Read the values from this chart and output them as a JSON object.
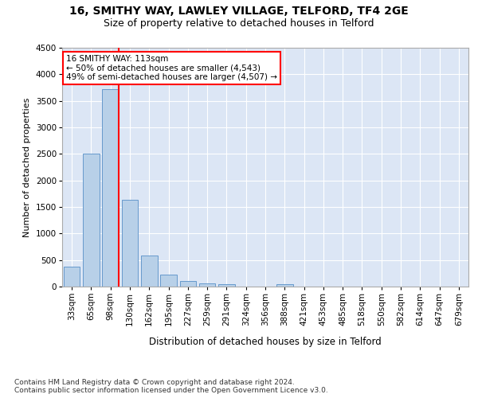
{
  "title1": "16, SMITHY WAY, LAWLEY VILLAGE, TELFORD, TF4 2GE",
  "title2": "Size of property relative to detached houses in Telford",
  "xlabel": "Distribution of detached houses by size in Telford",
  "ylabel": "Number of detached properties",
  "categories": [
    "33sqm",
    "65sqm",
    "98sqm",
    "130sqm",
    "162sqm",
    "195sqm",
    "227sqm",
    "259sqm",
    "291sqm",
    "324sqm",
    "356sqm",
    "388sqm",
    "421sqm",
    "453sqm",
    "485sqm",
    "518sqm",
    "550sqm",
    "582sqm",
    "614sqm",
    "647sqm",
    "679sqm"
  ],
  "values": [
    370,
    2500,
    3720,
    1630,
    590,
    225,
    105,
    65,
    40,
    0,
    0,
    50,
    0,
    0,
    0,
    0,
    0,
    0,
    0,
    0,
    0
  ],
  "bar_color": "#b8d0e8",
  "bar_edge_color": "#6699cc",
  "vline_x_idx": 2,
  "vline_color": "red",
  "annotation_text": "16 SMITHY WAY: 113sqm\n← 50% of detached houses are smaller (4,543)\n49% of semi-detached houses are larger (4,507) →",
  "annotation_box_color": "white",
  "annotation_box_edge": "red",
  "ylim": [
    0,
    4500
  ],
  "yticks": [
    0,
    500,
    1000,
    1500,
    2000,
    2500,
    3000,
    3500,
    4000,
    4500
  ],
  "plot_bg_color": "#dce6f5",
  "footer": "Contains HM Land Registry data © Crown copyright and database right 2024.\nContains public sector information licensed under the Open Government Licence v3.0.",
  "title1_fontsize": 10,
  "title2_fontsize": 9,
  "xlabel_fontsize": 8.5,
  "ylabel_fontsize": 8,
  "tick_fontsize": 7.5,
  "footer_fontsize": 6.5,
  "annot_fontsize": 7.5
}
